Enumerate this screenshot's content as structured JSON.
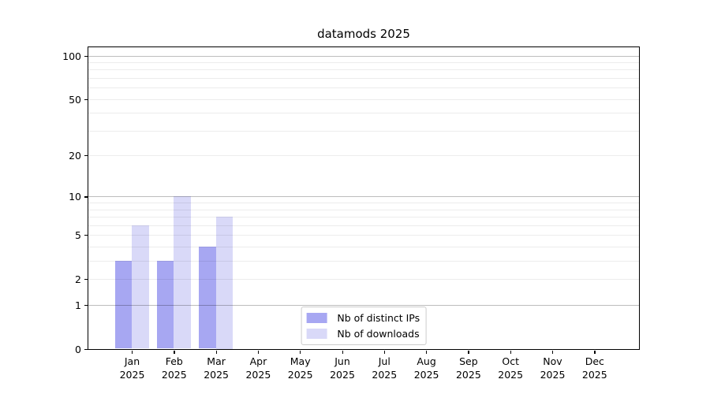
{
  "chart_data": {
    "type": "bar",
    "title": "datamods 2025",
    "categories": [
      "Jan 2025",
      "Feb 2025",
      "Mar 2025",
      "Apr 2025",
      "May 2025",
      "Jun 2025",
      "Jul 2025",
      "Aug 2025",
      "Sep 2025",
      "Oct 2025",
      "Nov 2025",
      "Dec 2025"
    ],
    "series": [
      {
        "name": "Nb of distinct IPs",
        "color": "#a7a7f2",
        "values": [
          3,
          3,
          4,
          0,
          0,
          0,
          0,
          0,
          0,
          0,
          0,
          0
        ]
      },
      {
        "name": "Nb of downloads",
        "color": "#d9d9f8",
        "values": [
          6,
          10,
          7,
          0,
          0,
          0,
          0,
          0,
          0,
          0,
          0,
          0
        ]
      }
    ],
    "xlabel": "",
    "ylabel": "",
    "yscale": "log1p",
    "ylim": [
      0,
      115
    ],
    "yticks": [
      0,
      1,
      2,
      5,
      10,
      20,
      50,
      100
    ],
    "grid": {
      "major_values": [
        1,
        10,
        100
      ],
      "minor_values": [
        2,
        3,
        4,
        5,
        6,
        7,
        8,
        9,
        20,
        30,
        40,
        50,
        60,
        70,
        80,
        90
      ]
    },
    "legend_position": "lower center",
    "grid_on": true
  }
}
